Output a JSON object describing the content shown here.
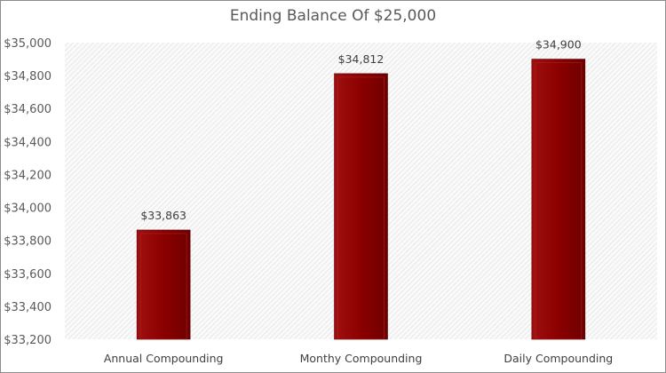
{
  "chart_data": {
    "type": "bar",
    "title": "Ending Balance Of $25,000",
    "categories": [
      "Annual Compounding",
      "Monthy Compounding",
      "Daily Compounding"
    ],
    "values": [
      33863,
      34812,
      34900
    ],
    "data_labels": [
      "$33,863",
      "$34,812",
      "$34,900"
    ],
    "xlabel": "",
    "ylabel": "",
    "ylim": [
      33200,
      35000
    ],
    "yticks": [
      33200,
      33400,
      33600,
      33800,
      34000,
      34200,
      34400,
      34600,
      34800,
      35000
    ],
    "ytick_labels": [
      "$33,200",
      "$33,400",
      "$33,600",
      "$33,800",
      "$34,000",
      "$34,200",
      "$34,400",
      "$34,600",
      "$34,800",
      "$35,000"
    ],
    "grid": false,
    "legend": "none",
    "bar_color": "#8b0000",
    "plot_background": "diagonal hatch light gray"
  }
}
